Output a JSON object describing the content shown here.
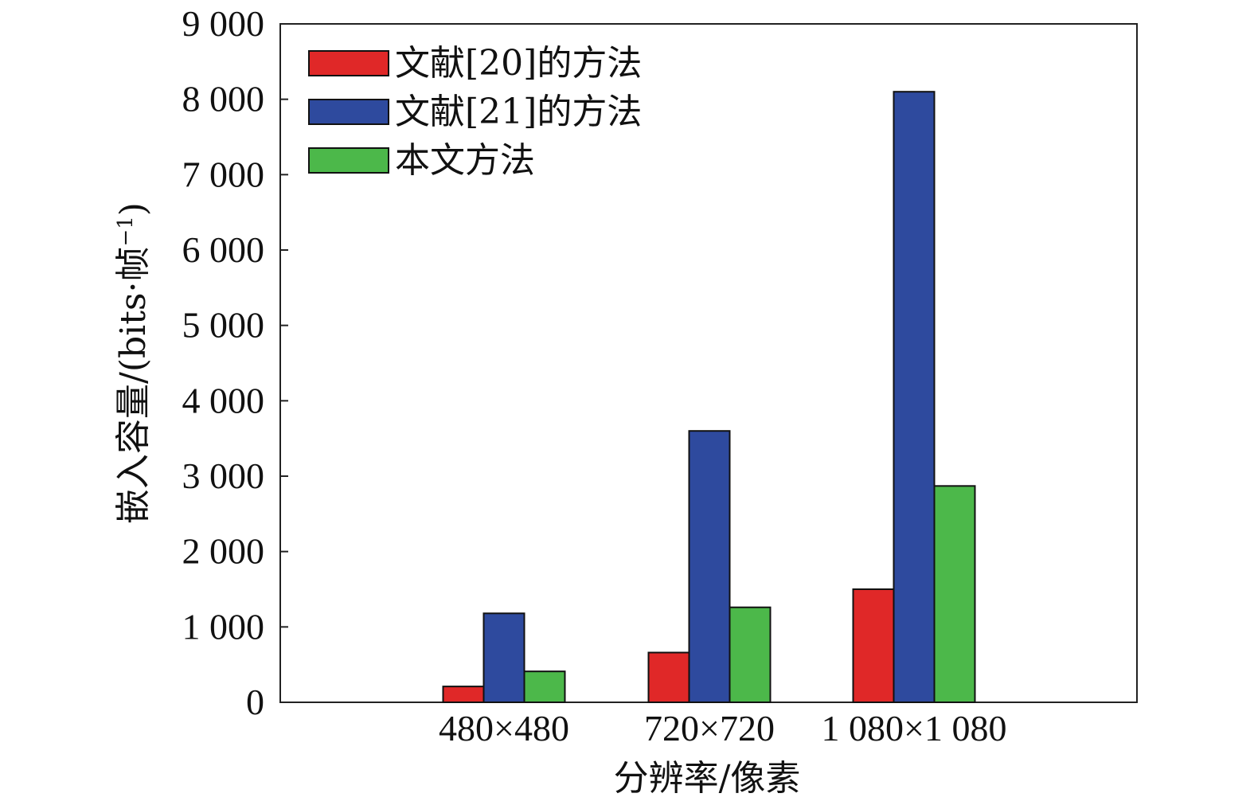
{
  "chart_data": {
    "type": "bar",
    "title": "",
    "xlabel": "分辨率/像素",
    "ylabel": "嵌入容量/(bits·帧",
    "ylabel_superscript": "−1",
    "ylabel_suffix": ")",
    "categories": [
      "480×480",
      "720×720",
      "1 080×1 080"
    ],
    "ylim": [
      0,
      9000
    ],
    "yticks": [
      0,
      1000,
      2000,
      3000,
      4000,
      5000,
      6000,
      7000,
      8000,
      9000
    ],
    "ytick_labels": [
      "0",
      "1 000",
      "2 000",
      "3 000",
      "4 000",
      "5 000",
      "6 000",
      "7 000",
      "8 000",
      "9 000"
    ],
    "grid": false,
    "legend_position": "top-left",
    "series": [
      {
        "name": "文献[20]的方法",
        "color": "#e02828",
        "values": [
          210,
          660,
          1500
        ]
      },
      {
        "name": "文献[21]的方法",
        "color": "#2e4a9e",
        "values": [
          1180,
          3600,
          8100
        ]
      },
      {
        "name": "本文方法",
        "color": "#4cb84a",
        "values": [
          410,
          1260,
          2870
        ]
      }
    ]
  }
}
